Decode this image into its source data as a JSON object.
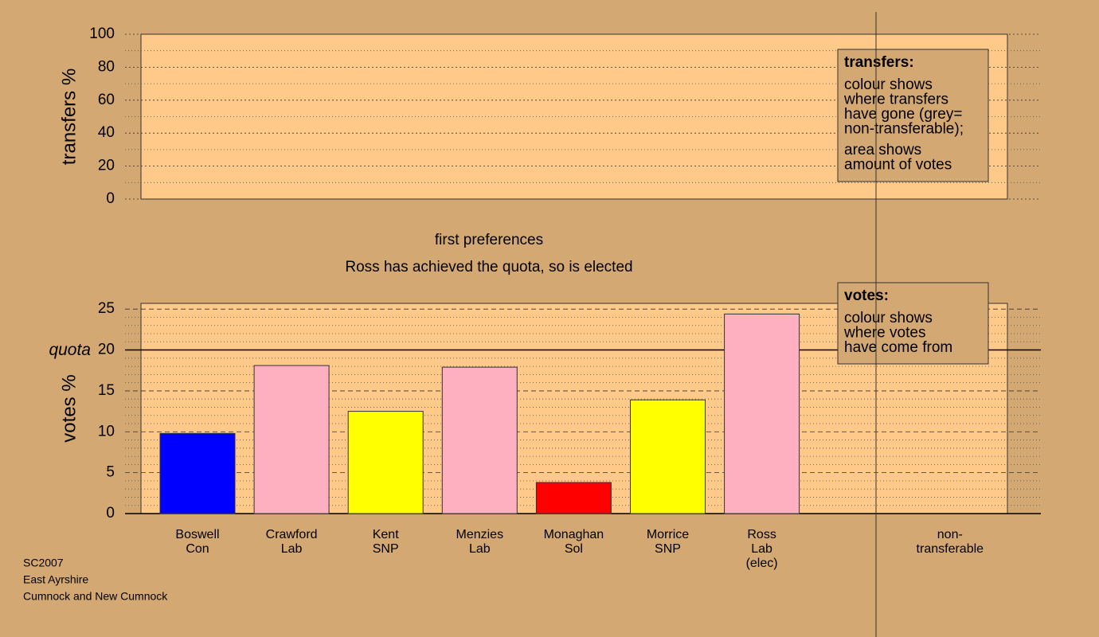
{
  "chart_data": [
    {
      "type": "bar",
      "ylabel": "transfers %",
      "ylim": [
        0,
        100
      ],
      "yticks": [
        0,
        20,
        40,
        60,
        80,
        100
      ],
      "minor_yticks": [
        10,
        30,
        50,
        70,
        90
      ],
      "legend_title": "transfers:",
      "legend_text": [
        [
          "colour shows",
          "where transfers",
          "have gone (grey=",
          "non-transferable);"
        ],
        [
          "area shows",
          "amount of votes"
        ]
      ]
    },
    {
      "type": "bar",
      "subtitle": "first preferences",
      "title": "Ross has achieved the quota, so is elected",
      "ylabel": "votes %",
      "ylim": [
        0,
        25.7
      ],
      "yticks": [
        0,
        5,
        10,
        15,
        20,
        25
      ],
      "minor_yticks": [
        1,
        2,
        3,
        4,
        6,
        7,
        8,
        9,
        11,
        12,
        13,
        14,
        16,
        17,
        18,
        19,
        21,
        22,
        23,
        24
      ],
      "quota": {
        "value": 20,
        "label": "quota"
      },
      "categories": [
        [
          "Boswell",
          "Con"
        ],
        [
          "Crawford",
          "Lab"
        ],
        [
          "Kent",
          "SNP"
        ],
        [
          "Menzies",
          "Lab"
        ],
        [
          "Monaghan",
          "Sol"
        ],
        [
          "Morrice",
          "SNP"
        ],
        [
          "Ross",
          "Lab",
          "(elec)"
        ],
        [
          "non-",
          "transferable"
        ]
      ],
      "values": [
        9.8,
        18.1,
        12.5,
        17.9,
        3.8,
        13.9,
        24.4,
        null
      ],
      "colors": [
        "#0000ff",
        "#ffb0c0",
        "#ffff00",
        "#ffb0c0",
        "#ff0000",
        "#ffff00",
        "#ffb0c0",
        null
      ],
      "legend_title": "votes:",
      "legend_text": [
        [
          "colour shows",
          "where votes",
          "have come from"
        ]
      ]
    }
  ],
  "footer": [
    "SC2007",
    "East Ayrshire",
    "Cumnock and New Cumnock"
  ]
}
